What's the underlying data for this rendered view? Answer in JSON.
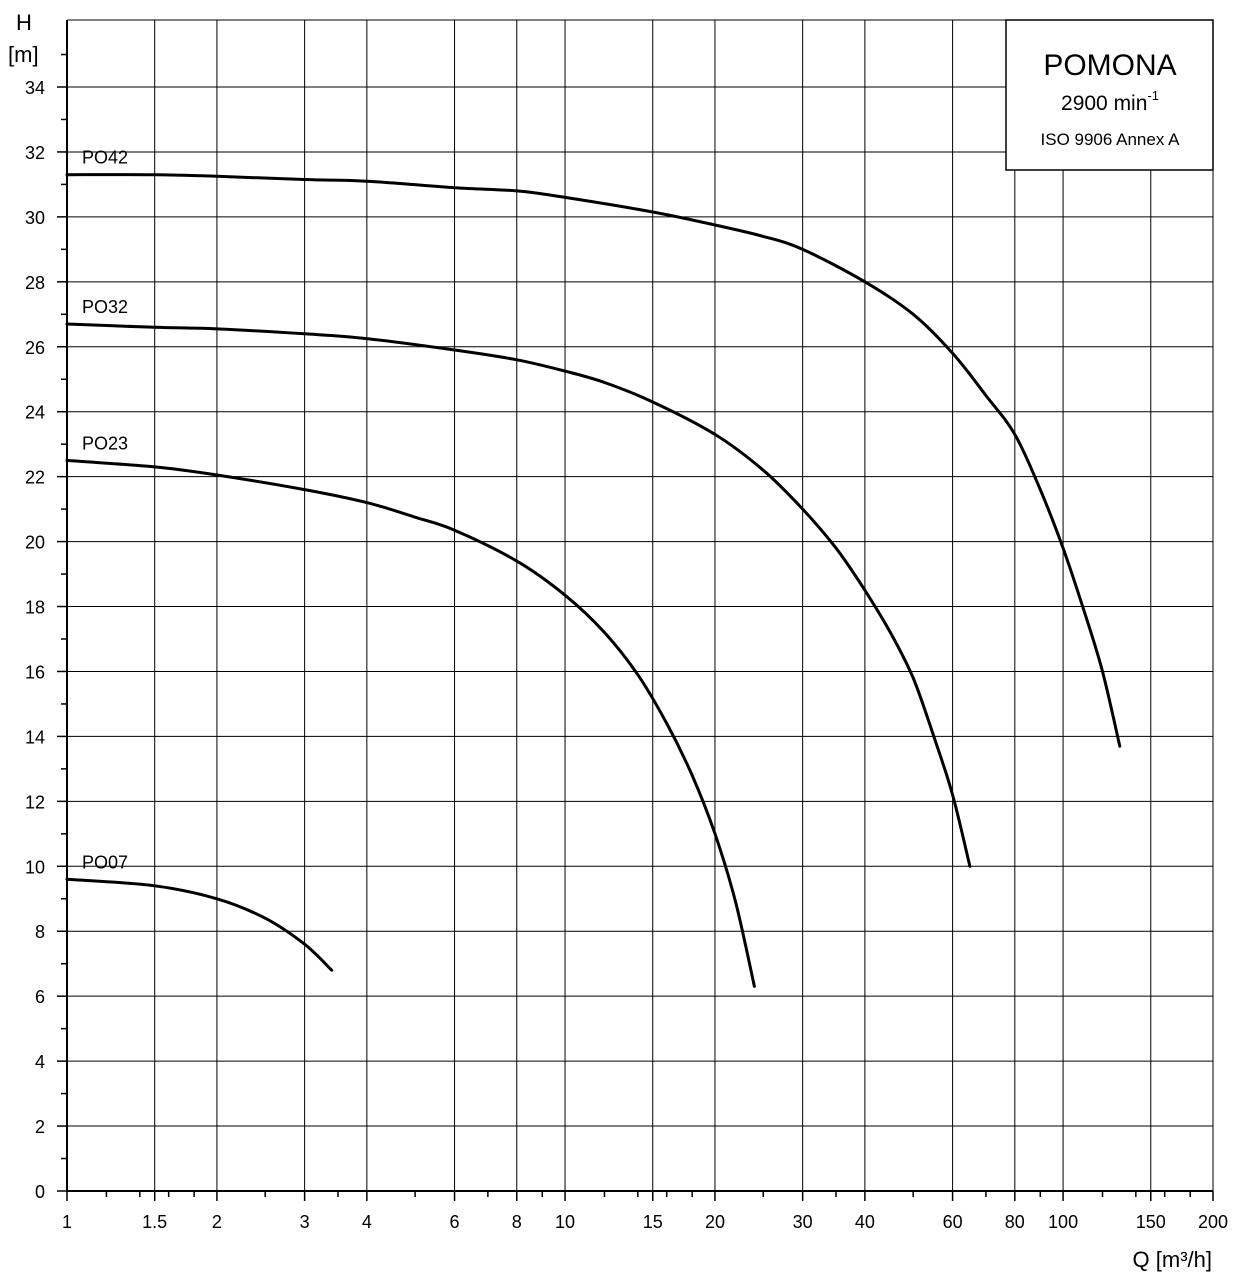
{
  "chart_data": {
    "type": "line",
    "title": "",
    "xlabel": "Q [m³/h]",
    "ylabel_line1": "H",
    "ylabel_line2": "[m]",
    "x_scale": "log",
    "xlim": [
      1,
      200
    ],
    "ylim": [
      0,
      35
    ],
    "grid": true,
    "x_ticks": [
      1,
      1.5,
      2,
      3,
      4,
      6,
      8,
      10,
      15,
      20,
      30,
      40,
      60,
      80,
      100,
      150,
      200
    ],
    "x_tick_labels": [
      "1",
      "1.5",
      "2",
      "3",
      "4",
      "6",
      "8",
      "10",
      "15",
      "20",
      "30",
      "40",
      "60",
      "80",
      "100",
      "150",
      "200"
    ],
    "y_ticks": [
      0,
      2,
      4,
      6,
      8,
      10,
      12,
      14,
      16,
      18,
      20,
      22,
      24,
      26,
      28,
      30,
      32,
      34
    ],
    "y_tick_labels": [
      "0",
      "2",
      "4",
      "6",
      "8",
      "10",
      "12",
      "14",
      "16",
      "18",
      "20",
      "22",
      "24",
      "26",
      "28",
      "30",
      "32",
      "34"
    ],
    "legend": {
      "placement": "top-right",
      "title": "POMONA",
      "speed_text": "2900 min",
      "speed_exp": "-1",
      "standard": "ISO 9906 Annex A"
    },
    "series": [
      {
        "name": "PO42",
        "x": [
          1,
          1.5,
          2,
          3,
          4,
          6,
          8,
          10,
          15,
          20,
          25,
          30,
          40,
          50,
          60,
          70,
          80,
          90,
          100,
          110,
          120,
          130
        ],
        "y": [
          31.3,
          31.3,
          31.25,
          31.15,
          31.1,
          30.9,
          30.8,
          30.6,
          30.15,
          29.75,
          29.4,
          29.0,
          28.0,
          27.0,
          25.8,
          24.5,
          23.3,
          21.6,
          19.8,
          17.9,
          16.0,
          13.7
        ]
      },
      {
        "name": "PO32",
        "x": [
          1,
          1.5,
          2,
          3,
          4,
          6,
          8,
          10,
          12,
          15,
          20,
          25,
          30,
          35,
          40,
          45,
          50,
          55,
          60,
          65
        ],
        "y": [
          26.7,
          26.6,
          26.55,
          26.4,
          26.25,
          25.9,
          25.6,
          25.25,
          24.9,
          24.3,
          23.3,
          22.2,
          21.0,
          19.8,
          18.5,
          17.2,
          15.8,
          14.0,
          12.2,
          10.0
        ]
      },
      {
        "name": "PO23",
        "x": [
          1,
          1.5,
          2,
          3,
          4,
          5,
          6,
          8,
          10,
          12,
          14,
          16,
          18,
          20,
          22,
          24
        ],
        "y": [
          22.5,
          22.3,
          22.05,
          21.6,
          21.2,
          20.75,
          20.35,
          19.4,
          18.35,
          17.2,
          15.9,
          14.4,
          12.8,
          11.0,
          8.9,
          6.3
        ]
      },
      {
        "name": "PO07",
        "x": [
          1,
          1.5,
          2,
          2.5,
          3,
          3.4
        ],
        "y": [
          9.6,
          9.4,
          9.0,
          8.4,
          7.6,
          6.8
        ]
      }
    ]
  }
}
